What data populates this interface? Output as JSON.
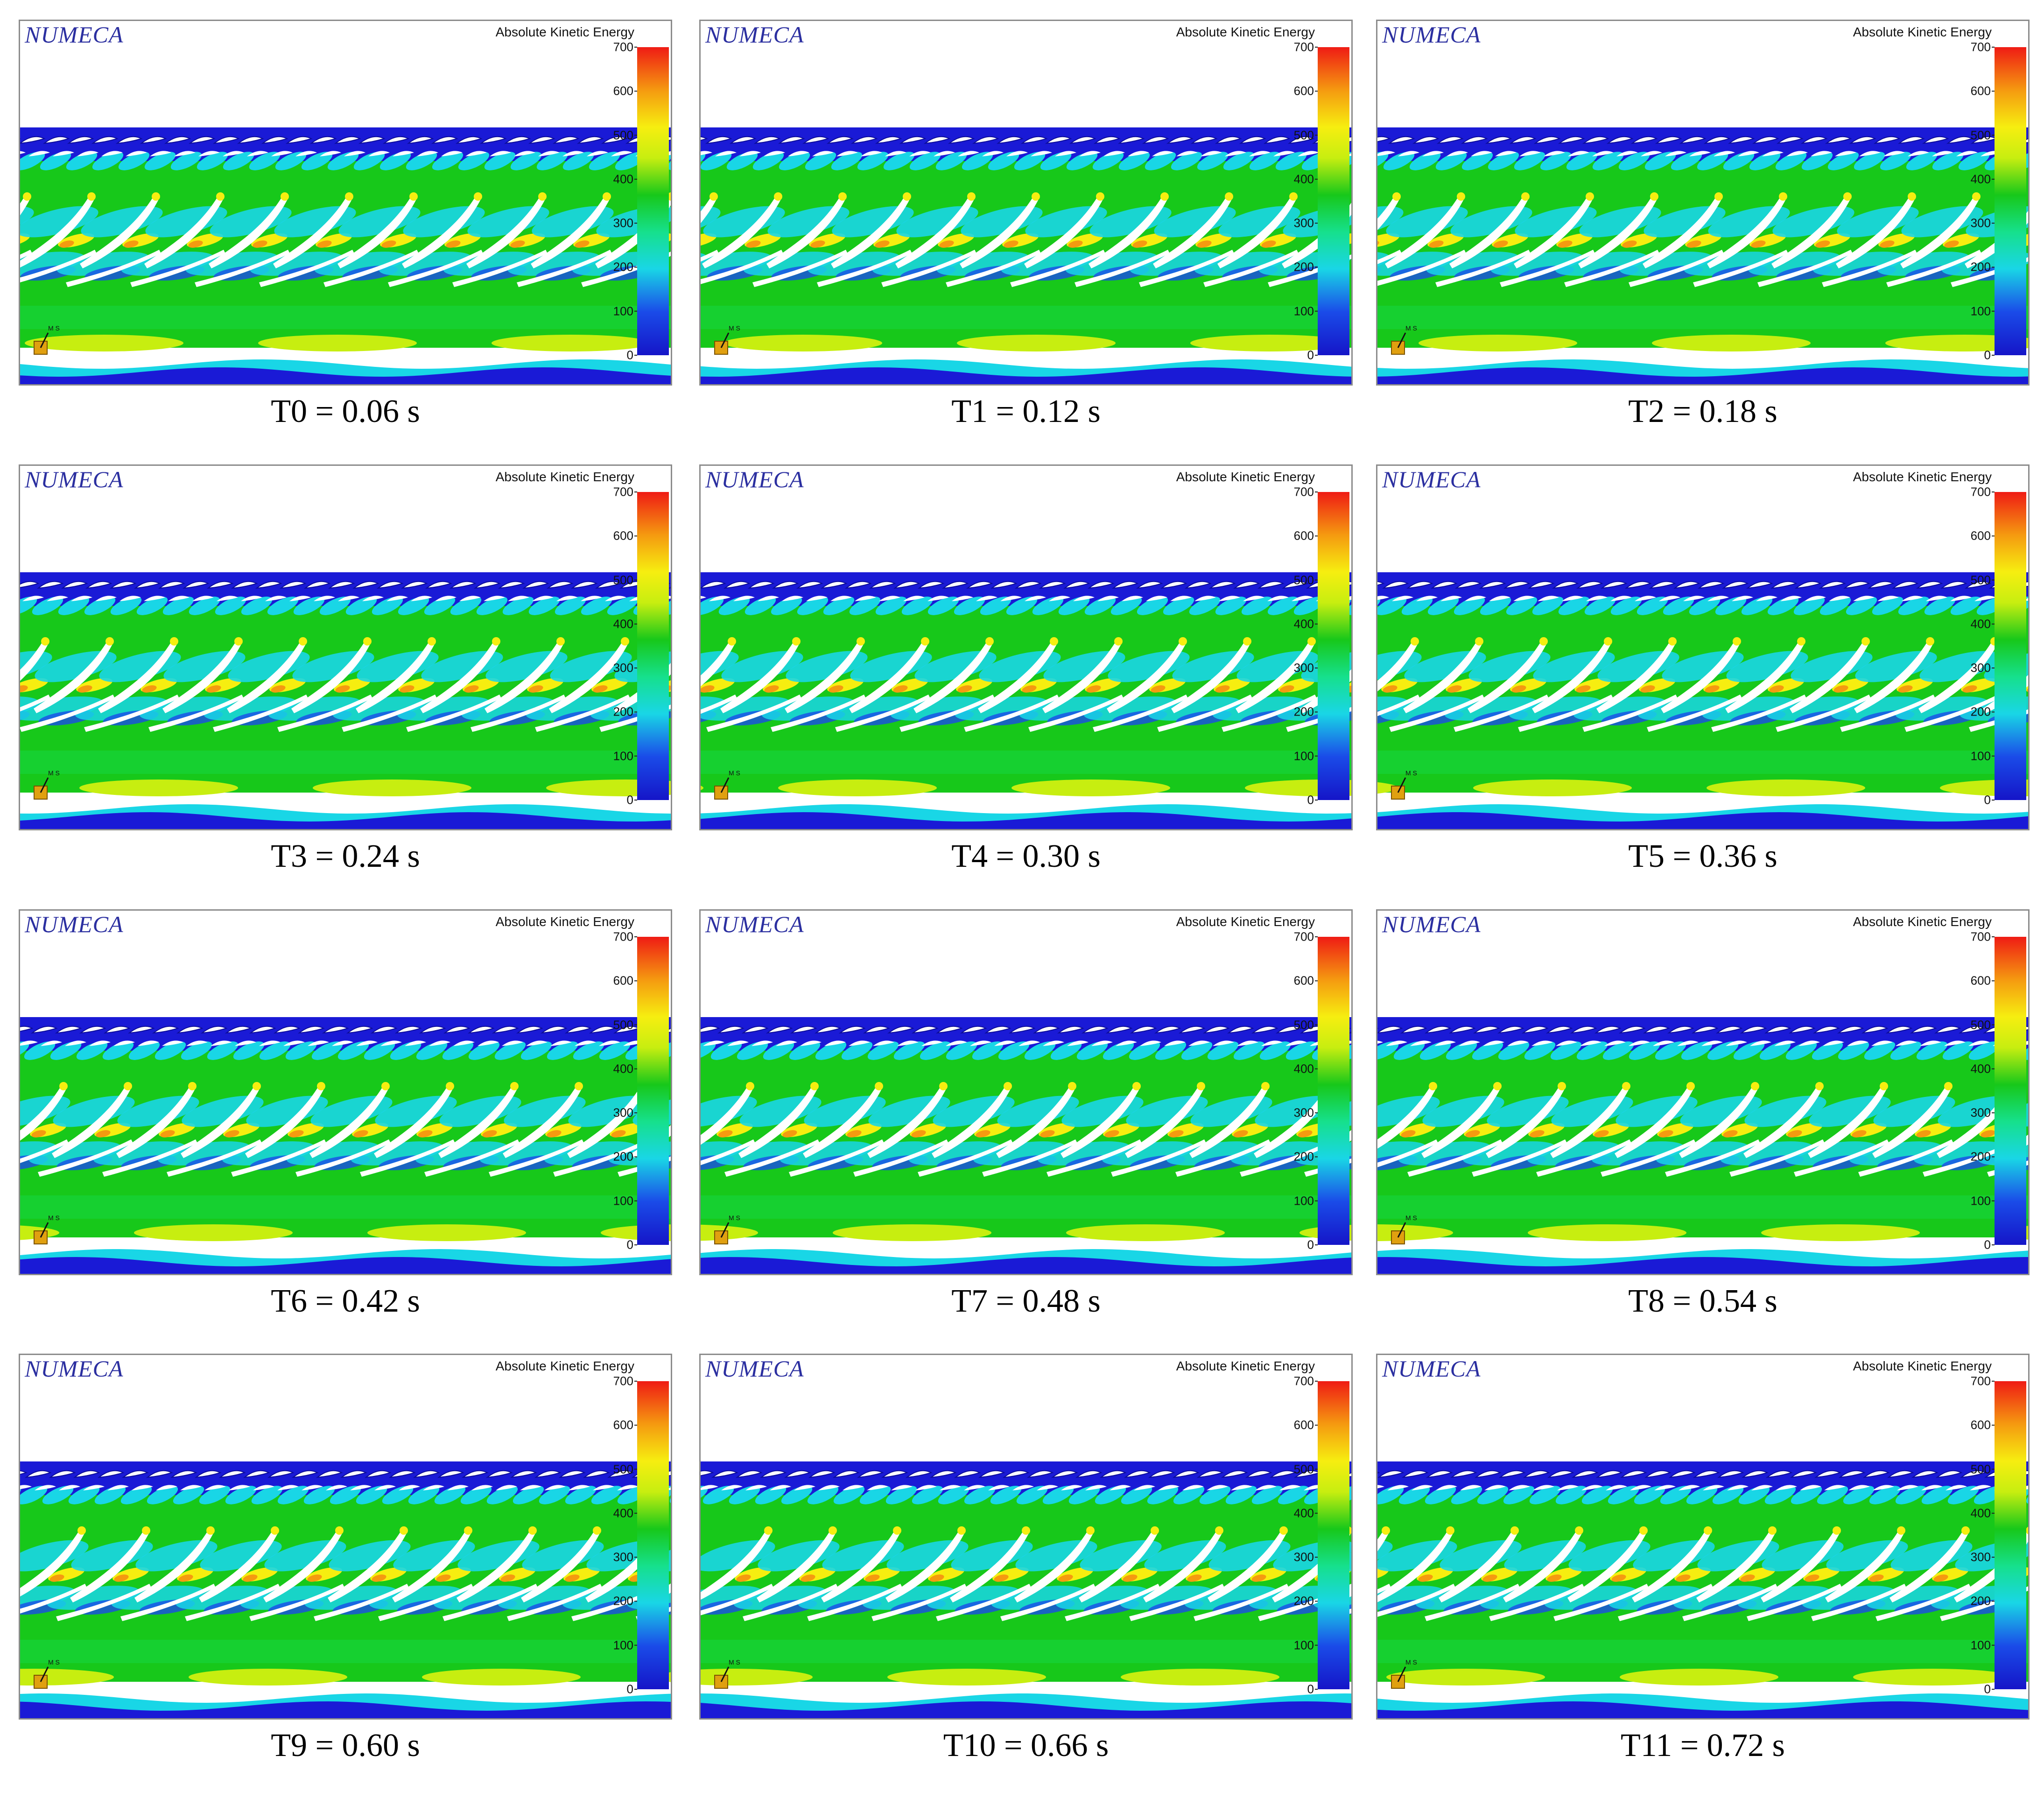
{
  "logo_text": "NUMECA",
  "legend_title": "Absolute Kinetic Energy",
  "axis_label": "M S",
  "colorbar_ticks": [
    "700",
    "600",
    "500",
    "400",
    "300",
    "200",
    "100",
    "0"
  ],
  "colors": {
    "logo": "#2b2fa0",
    "deep_blue": "#1a1ad6",
    "cyan": "#19d6e6",
    "green": "#17c81a",
    "yellow_green": "#c7ee10",
    "yellow": "#f6ee10",
    "orange": "#f59a10",
    "red": "#ef1b14"
  },
  "panels": [
    {
      "caption": "T0 = 0.06 s"
    },
    {
      "caption": "T1 = 0.12 s"
    },
    {
      "caption": "T2 = 0.18 s"
    },
    {
      "caption": "T3 = 0.24 s"
    },
    {
      "caption": "T4 = 0.30 s"
    },
    {
      "caption": "T5 = 0.36 s"
    },
    {
      "caption": "T6 = 0.42 s"
    },
    {
      "caption": "T7 = 0.48 s"
    },
    {
      "caption": "T8 = 0.54 s"
    },
    {
      "caption": "T9 = 0.60 s"
    },
    {
      "caption": "T10 = 0.66 s"
    },
    {
      "caption": "T11 = 0.72 s"
    }
  ]
}
